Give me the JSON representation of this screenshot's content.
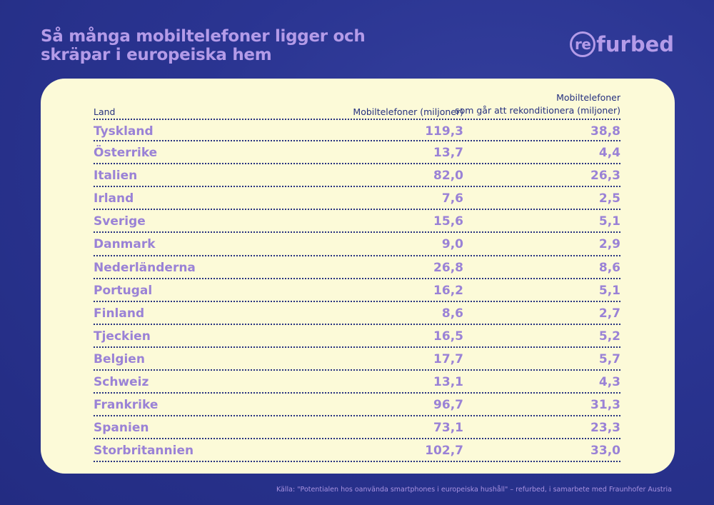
{
  "title_lines": [
    "Så många mobiltelefoner ligger och",
    "skräpar i europeiska hem"
  ],
  "logo": {
    "ring_text": "re",
    "rest_text": "furbed"
  },
  "colors": {
    "background": "#2a3491",
    "card": "#fcfad8",
    "accent": "#b49be8",
    "row_text": "#9a82d6",
    "header_text": "#25307f"
  },
  "chart_data": {
    "type": "table",
    "columns": {
      "country": "Land",
      "phones": "Mobiltelefoner (miljoner)",
      "refurb_line1": "Mobiltelefoner",
      "refurb_line2": "som går att rekonditionera (miljoner)"
    },
    "rows": [
      {
        "country": "Tyskland",
        "phones": "119,3",
        "refurb": "38,8"
      },
      {
        "country": "Österrike",
        "phones": "13,7",
        "refurb": "4,4"
      },
      {
        "country": "Italien",
        "phones": "82,0",
        "refurb": "26,3"
      },
      {
        "country": "Irland",
        "phones": "7,6",
        "refurb": "2,5"
      },
      {
        "country": "Sverige",
        "phones": "15,6",
        "refurb": "5,1"
      },
      {
        "country": "Danmark",
        "phones": "9,0",
        "refurb": "2,9"
      },
      {
        "country": "Nederländerna",
        "phones": "26,8",
        "refurb": "8,6"
      },
      {
        "country": "Portugal",
        "phones": "16,2",
        "refurb": "5,1"
      },
      {
        "country": "Finland",
        "phones": "8,6",
        "refurb": "2,7"
      },
      {
        "country": "Tjeckien",
        "phones": "16,5",
        "refurb": "5,2"
      },
      {
        "country": "Belgien",
        "phones": "17,7",
        "refurb": "5,7"
      },
      {
        "country": "Schweiz",
        "phones": "13,1",
        "refurb": "4,3"
      },
      {
        "country": "Frankrike",
        "phones": "96,7",
        "refurb": "31,3"
      },
      {
        "country": "Spanien",
        "phones": "73,1",
        "refurb": "23,3"
      },
      {
        "country": "Storbritannien",
        "phones": "102,7",
        "refurb": "33,0"
      }
    ]
  },
  "source": "Källa: \"Potentialen hos oanvända smartphones i europeiska hushåll\" – refurbed, i samarbete med Fraunhofer Austria"
}
